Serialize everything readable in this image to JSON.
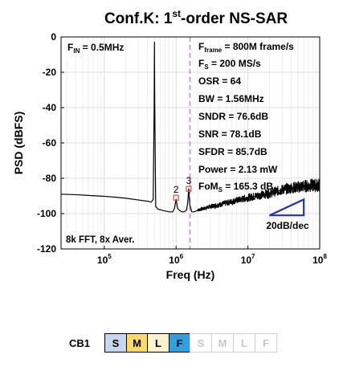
{
  "chart_data": {
    "type": "line",
    "title_main": "Conf.K: 1",
    "title_sup": "st",
    "title_rest": "-order NS-SAR",
    "xlabel": "Freq (Hz)",
    "ylabel": "PSD (dBFS)",
    "xscale": "log",
    "xlim": [
      25000,
      100000000
    ],
    "ylim": [
      -120,
      0
    ],
    "yticks": [
      0,
      -20,
      -40,
      -60,
      -80,
      -100,
      -120
    ],
    "xticks": [
      {
        "value": 100000,
        "base": "10",
        "exp": "5"
      },
      {
        "value": 1000000,
        "base": "10",
        "exp": "6"
      },
      {
        "value": 10000000,
        "base": "10",
        "exp": "7"
      },
      {
        "value": 100000000,
        "base": "10",
        "exp": "8"
      }
    ],
    "grid": true,
    "bandwidth_marker_hz": 1560000,
    "series": [
      {
        "color": "#000000",
        "x": [
          25000,
          40000,
          60000,
          100000,
          150000,
          200000,
          300000,
          400000,
          450000,
          480000,
          495000,
          500000,
          505000,
          520000,
          560000,
          620000,
          700000,
          800000,
          900000,
          950000,
          1000000,
          1050000,
          1100000,
          1200000,
          1300000,
          1400000,
          1450000,
          1500000,
          1550000,
          1650000,
          1800000,
          2000000,
          2500000,
          3000000,
          4000000,
          5000000,
          7000000,
          10000000,
          15000000,
          20000000,
          30000000,
          40000000,
          60000000,
          80000000,
          100000000
        ],
        "y": [
          -89,
          -89.3,
          -89.7,
          -90.2,
          -90.8,
          -91.3,
          -92.3,
          -93,
          -93.5,
          -92,
          -40,
          -3,
          -40,
          -96,
          -97.5,
          -98,
          -98.5,
          -99,
          -99,
          -97,
          -92,
          -97,
          -98,
          -99,
          -99,
          -98,
          -94,
          -86,
          -95,
          -99,
          -99,
          -98,
          -97,
          -96,
          -95,
          -94,
          -92.5,
          -91,
          -89.5,
          -88.5,
          -86.5,
          -85.5,
          -84.5,
          -84,
          -84
        ]
      }
    ],
    "harmonic_markers": [
      {
        "label": "2",
        "x": 1000000,
        "y": -91
      },
      {
        "label": "3",
        "x": 1500000,
        "y": -86
      }
    ],
    "slope_label": "20dB/dec",
    "annotations": {
      "fin": {
        "main": "F",
        "sub": "IN",
        "rest": " = 0.5MHz"
      },
      "fframe": {
        "main": "F",
        "sub": "frame",
        "rest": " = 800M frame/s"
      },
      "fs": {
        "main": "F",
        "sub": "S",
        "rest": " = 200 MS/s"
      },
      "osr": "OSR = 64",
      "bw": "BW = 1.56MHz",
      "sndr": "SNDR = 76.6dB",
      "snr": "SNR = 78.1dB",
      "sfdr": "SFDR = 85.7dB",
      "power": "Power = 2.13 mW",
      "fom": {
        "main": "FoM",
        "sub": "S",
        "rest": " = 165.3 dB"
      },
      "fft_note": "8k FFT, 8x Aver."
    }
  },
  "cb": {
    "label": "CB1",
    "cells": [
      {
        "text": "S",
        "active": true,
        "color": "#c8d5ef"
      },
      {
        "text": "M",
        "active": true,
        "color": "#ffd966"
      },
      {
        "text": "L",
        "active": true,
        "color": "#fff2cc"
      },
      {
        "text": "F",
        "active": true,
        "color": "#2fa0e0"
      },
      {
        "text": "S",
        "active": false,
        "color": "#ffffff"
      },
      {
        "text": "M",
        "active": false,
        "color": "#ffffff"
      },
      {
        "text": "L",
        "active": false,
        "color": "#ffffff"
      },
      {
        "text": "F",
        "active": false,
        "color": "#ffffff"
      }
    ]
  }
}
